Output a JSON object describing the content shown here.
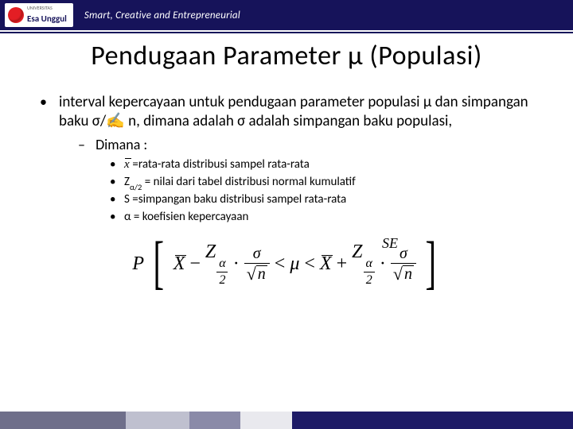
{
  "header": {
    "logo_main": "Esa Unggul",
    "logo_sub": "UNIVERSITAS",
    "tagline": "Smart, Creative and Entrepreneurial",
    "bg_color": "#16135a"
  },
  "title": "Pendugaan Parameter μ (Populasi)",
  "body": {
    "main_bullet": "interval kepercayaan untuk pendugaan parameter populasi μ dan simpangan baku σ/✍ n, dimana  adalah σ adalah simpangan baku populasi,",
    "dimana_label": "Dimana :",
    "items": [
      {
        "pre": "",
        "text": "=rata-rata distribusi sampel rata-rata",
        "has_xbar": true
      },
      {
        "pre": "Z",
        "sub": "α/2",
        "text": " = nilai dari tabel distribusi normal kumulatif"
      },
      {
        "pre": "S ",
        "text": "=simpangan baku distribusi sampel rata-rata"
      },
      {
        "pre": "α ",
        "text": "= koefisien kepercayaan"
      }
    ]
  },
  "formula": {
    "se_label": "SE",
    "P": "P",
    "X": "X",
    "minus": "−",
    "Z": "Z",
    "alpha": "α",
    "two": "2",
    "dot": "·",
    "sigma": "σ",
    "n": "n",
    "lt": "<",
    "mu": "μ",
    "plus": "+"
  },
  "footer_segments": [
    {
      "color": "#6f6f8a",
      "width": 22
    },
    {
      "color": "#bfc0cf",
      "width": 11
    },
    {
      "color": "#8a8aa8",
      "width": 9
    },
    {
      "color": "#e9e9ee",
      "width": 9
    },
    {
      "color": "#1d1a66",
      "width": 49
    }
  ]
}
